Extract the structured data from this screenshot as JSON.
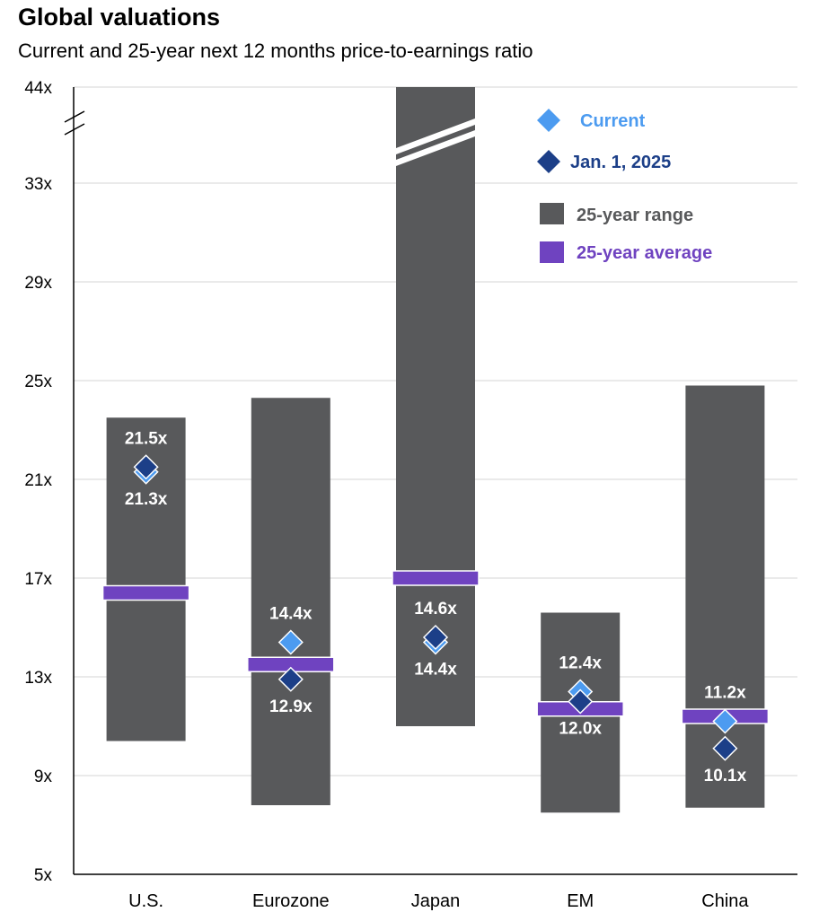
{
  "title": "Global valuations",
  "subtitle": "Current and 25-year next 12 months price-to-earnings ratio",
  "chart_data": {
    "type": "bar",
    "y_axis": {
      "ticks": [
        5,
        9,
        13,
        17,
        21,
        25,
        29,
        33,
        44
      ],
      "tick_labels": [
        "5x",
        "9x",
        "13x",
        "17x",
        "21x",
        "25x",
        "29x",
        "33x",
        "44x"
      ],
      "scale_break_between": [
        33,
        44
      ]
    },
    "grid": true,
    "legend_position": "top-right",
    "legend": [
      {
        "key": "current",
        "label": "Current",
        "marker": "diamond",
        "color": "#4c9bf0"
      },
      {
        "key": "jan",
        "label": "Jan. 1, 2025",
        "marker": "diamond",
        "color": "#1c3f88"
      },
      {
        "key": "range",
        "label": "25-year range",
        "marker": "square",
        "color": "#58595b"
      },
      {
        "key": "average",
        "label": "25-year average",
        "marker": "square",
        "color": "#6f43c0"
      }
    ],
    "categories": [
      "U.S.",
      "Eurozone",
      "Japan",
      "EM",
      "China"
    ],
    "series": [
      {
        "name": "25-year range",
        "low": [
          10.4,
          7.8,
          11.0,
          7.5,
          7.7
        ],
        "high": [
          23.5,
          24.3,
          44,
          15.6,
          24.8
        ]
      },
      {
        "name": "25-year average",
        "values": [
          16.4,
          13.5,
          17.0,
          11.7,
          11.4
        ]
      },
      {
        "name": "Current",
        "values": [
          21.3,
          14.4,
          14.4,
          12.4,
          11.2
        ]
      },
      {
        "name": "Jan. 1, 2025",
        "values": [
          21.5,
          12.9,
          14.6,
          12.0,
          10.1
        ]
      }
    ],
    "data_labels": {
      "current": [
        "21.3x",
        "14.4x",
        "14.4x",
        "12.4x",
        "11.2x"
      ],
      "jan": [
        "21.5x",
        "12.9x",
        "14.6x",
        "12.0x",
        "10.1x"
      ]
    }
  }
}
